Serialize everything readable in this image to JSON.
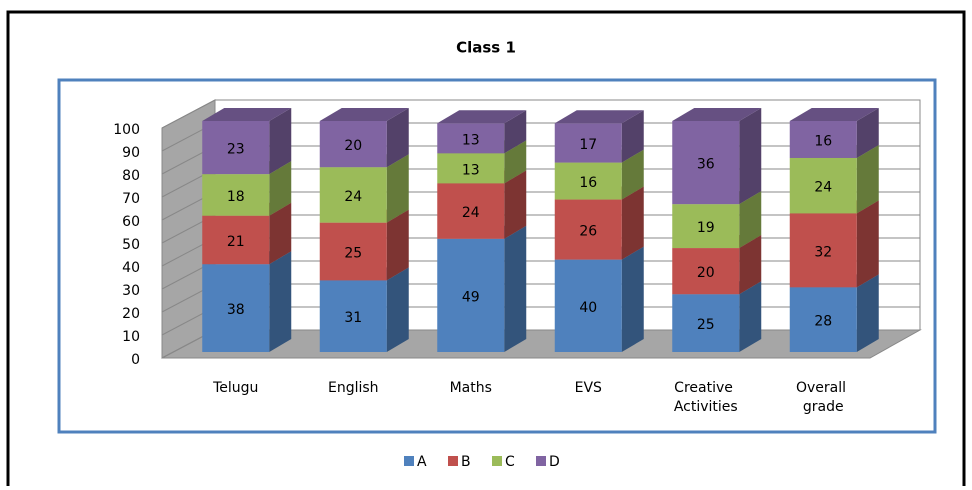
{
  "chart_data": {
    "type": "bar",
    "stacked": true,
    "title": "Class 1",
    "categories": [
      "Telugu",
      "English",
      "Maths",
      "EVS",
      "Creative Activities",
      "Overall grade"
    ],
    "series": [
      {
        "name": "A",
        "color": "#4f81bd",
        "values": [
          38,
          31,
          49,
          40,
          25,
          28
        ]
      },
      {
        "name": "B",
        "color": "#c0504d",
        "values": [
          21,
          25,
          24,
          26,
          20,
          32
        ]
      },
      {
        "name": "C",
        "color": "#9bbb59",
        "values": [
          18,
          24,
          13,
          16,
          19,
          24
        ]
      },
      {
        "name": "D",
        "color": "#8064a2",
        "values": [
          23,
          20,
          13,
          17,
          36,
          16
        ]
      }
    ],
    "ylim": [
      0,
      100
    ],
    "yticks": [
      0,
      10,
      20,
      30,
      40,
      50,
      60,
      70,
      80,
      90,
      100
    ],
    "grid": true,
    "legend": "bottom"
  }
}
